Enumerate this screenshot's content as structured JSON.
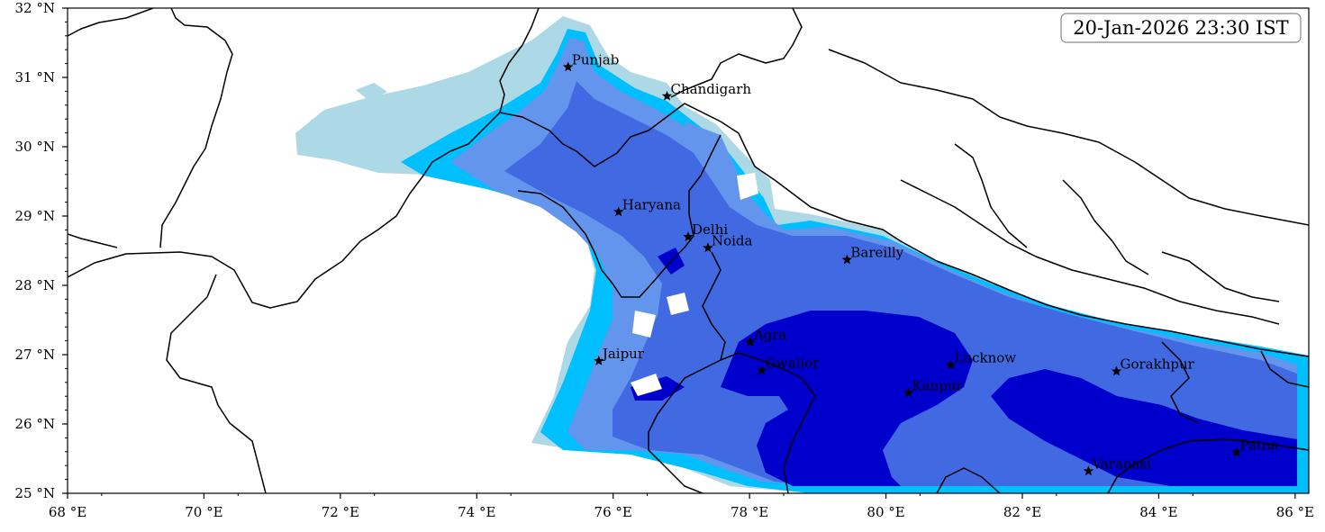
{
  "timestamp": "20-Jan-2026 23:30 IST",
  "colors": {
    "light": "#add8e6",
    "sky": "#00bfff",
    "cornflower": "#6495ed",
    "royal": "#4169e1",
    "dark": "#0000cd",
    "border": "#000000"
  },
  "extent": {
    "lon": [
      68,
      86.2
    ],
    "lat": [
      25,
      32
    ]
  },
  "x_ticks": [
    {
      "value": 68,
      "label": "68 °E"
    },
    {
      "value": 70,
      "label": "70 °E"
    },
    {
      "value": 72,
      "label": "72 °E"
    },
    {
      "value": 74,
      "label": "74 °E"
    },
    {
      "value": 76,
      "label": "76 °E"
    },
    {
      "value": 78,
      "label": "78 °E"
    },
    {
      "value": 80,
      "label": "80 °E"
    },
    {
      "value": 82,
      "label": "82 °E"
    },
    {
      "value": 84,
      "label": "84 °E"
    },
    {
      "value": 86,
      "label": "86 °E"
    }
  ],
  "y_ticks": [
    {
      "value": 32,
      "label": "32 °N"
    },
    {
      "value": 31,
      "label": "31 °N"
    },
    {
      "value": 30,
      "label": "30 °N"
    },
    {
      "value": 29,
      "label": "29 °N"
    },
    {
      "value": 28,
      "label": "28 °N"
    },
    {
      "value": 27,
      "label": "27 °N"
    },
    {
      "value": 26,
      "label": "26 °N"
    },
    {
      "value": 25,
      "label": "25 °N"
    }
  ],
  "cities": [
    {
      "name": "Punjab",
      "lon": 75.34,
      "lat": 31.15
    },
    {
      "name": "Chandigarh",
      "lon": 76.79,
      "lat": 30.73
    },
    {
      "name": "Haryana",
      "lon": 76.08,
      "lat": 29.06
    },
    {
      "name": "Delhi",
      "lon": 77.1,
      "lat": 28.7
    },
    {
      "name": "Noida",
      "lon": 77.39,
      "lat": 28.54
    },
    {
      "name": "Bareilly",
      "lon": 79.43,
      "lat": 28.37
    },
    {
      "name": "Agra",
      "lon": 78.01,
      "lat": 27.18
    },
    {
      "name": "Jaipur",
      "lon": 75.79,
      "lat": 26.91
    },
    {
      "name": "Gwalior",
      "lon": 78.18,
      "lat": 26.77
    },
    {
      "name": "Lucknow",
      "lon": 80.95,
      "lat": 26.85
    },
    {
      "name": "Kanpur",
      "lon": 80.33,
      "lat": 26.45
    },
    {
      "name": "Gorakhpur",
      "lon": 83.38,
      "lat": 26.76
    },
    {
      "name": "Varanasi",
      "lon": 82.97,
      "lat": 25.32
    },
    {
      "name": "Patna",
      "lon": 85.14,
      "lat": 25.59
    }
  ]
}
